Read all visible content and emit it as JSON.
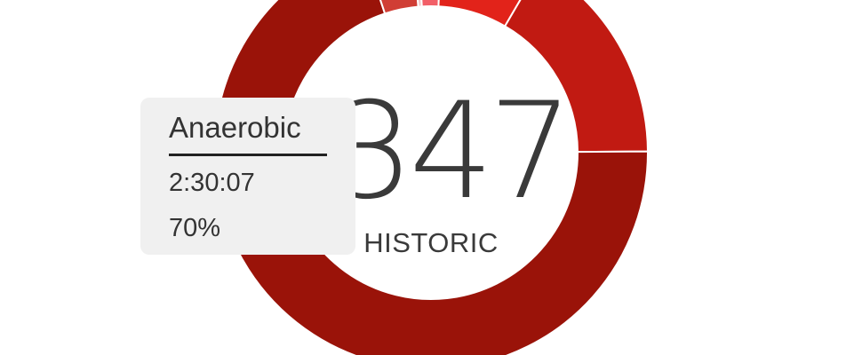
{
  "chart_data": {
    "type": "pie",
    "style": "donut",
    "slices": [
      {
        "label": "",
        "value": 0.4,
        "color": "#f3c5c5"
      },
      {
        "label": "",
        "value": 1.8,
        "color": "#f25f68"
      },
      {
        "label": "",
        "value": 7.6,
        "color": "#e2231a"
      },
      {
        "label": "",
        "value": 16.5,
        "color": "#c11a12"
      },
      {
        "label": "Anaerobic",
        "value": 70.0,
        "color": "#9a1309",
        "time": "2:30:07"
      },
      {
        "label": "",
        "value": 3.7,
        "color": "#d03e35"
      }
    ],
    "center_value": "347",
    "center_label": "HISTORIC"
  },
  "tooltip": {
    "title": "Anaerobic",
    "time": "2:30:07",
    "percent": "70%"
  }
}
